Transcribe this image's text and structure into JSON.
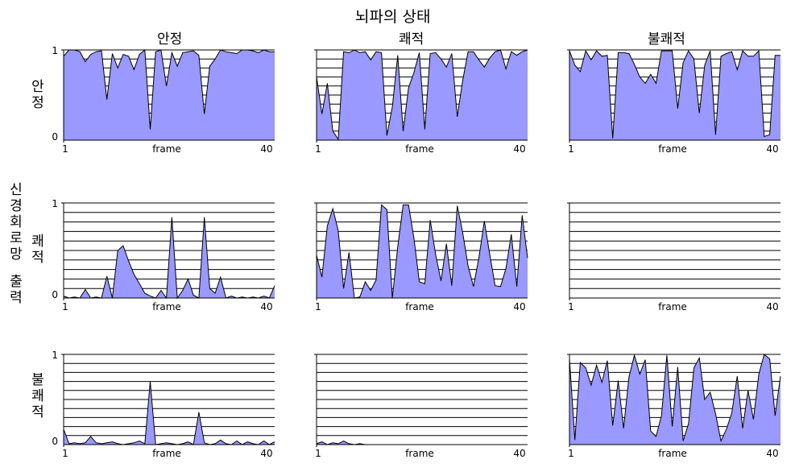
{
  "title": "뇌파의 상태",
  "column_titles": [
    "안정",
    "쾌적",
    "불쾌적"
  ],
  "row_titles": [
    "안정",
    "쾌적",
    "불쾌적"
  ],
  "left_group_label": "신경회로망 출력",
  "colors": {
    "fill": "#9999ff",
    "stroke": "#000000",
    "grid": "#000000"
  },
  "axis": {
    "xlabel": "frame",
    "x_first": "1",
    "x_last": "40",
    "y_top": "1",
    "y_bottom": "0"
  },
  "chart_data": [
    {
      "type": "area",
      "row": "안정",
      "col": "안정",
      "xlabel": "frame",
      "xlim": [
        1,
        40
      ],
      "ylim": [
        0,
        1
      ],
      "grid": "horizontal",
      "y": [
        0.93,
        1.0,
        1.0,
        0.98,
        0.87,
        0.95,
        0.98,
        0.99,
        0.45,
        0.96,
        0.8,
        0.95,
        0.93,
        0.78,
        0.95,
        1.0,
        0.12,
        0.98,
        1.0,
        0.6,
        0.97,
        0.82,
        0.97,
        0.98,
        0.99,
        0.94,
        0.29,
        0.82,
        0.9,
        1.0,
        0.98,
        0.97,
        0.96,
        1.0,
        1.0,
        0.99,
        0.97,
        1.0,
        0.98,
        0.98
      ]
    },
    {
      "type": "area",
      "row": "안정",
      "col": "쾌적",
      "xlabel": "frame",
      "xlim": [
        1,
        40
      ],
      "ylim": [
        0,
        1
      ],
      "grid": "horizontal",
      "y": [
        0.7,
        0.29,
        0.63,
        0.1,
        0.01,
        0.98,
        0.97,
        1.0,
        0.97,
        0.98,
        0.89,
        0.98,
        0.97,
        0.05,
        0.37,
        0.94,
        0.1,
        0.58,
        0.75,
        0.97,
        0.12,
        0.96,
        0.97,
        0.9,
        0.81,
        0.96,
        0.26,
        0.66,
        0.98,
        0.98,
        0.89,
        0.81,
        0.91,
        0.98,
        1.0,
        0.79,
        0.98,
        0.94,
        0.98,
        1.0
      ]
    },
    {
      "type": "area",
      "row": "안정",
      "col": "불쾌적",
      "xlabel": "frame",
      "xlim": [
        1,
        40
      ],
      "ylim": [
        0,
        1
      ],
      "grid": "horizontal",
      "y": [
        0.99,
        0.83,
        0.76,
        0.99,
        0.89,
        0.99,
        0.93,
        0.94,
        0.02,
        0.97,
        0.97,
        0.96,
        0.84,
        0.7,
        0.63,
        0.73,
        0.63,
        0.99,
        0.99,
        0.99,
        0.35,
        0.86,
        0.99,
        0.9,
        0.3,
        0.83,
        0.99,
        0.06,
        0.93,
        0.96,
        0.98,
        0.78,
        0.99,
        0.93,
        0.93,
        0.99,
        0.04,
        0.06,
        0.94,
        0.94
      ]
    },
    {
      "type": "area",
      "row": "쾌적",
      "col": "안정",
      "xlabel": "frame",
      "xlim": [
        1,
        40
      ],
      "ylim": [
        0,
        1
      ],
      "grid": "horizontal",
      "y": [
        0.02,
        0.0,
        0.01,
        0.0,
        0.09,
        0.0,
        0.01,
        0.0,
        0.23,
        0.0,
        0.5,
        0.55,
        0.39,
        0.25,
        0.15,
        0.05,
        0.02,
        0.0,
        0.08,
        0.0,
        0.85,
        0.0,
        0.08,
        0.2,
        0.03,
        0.0,
        0.85,
        0.1,
        0.05,
        0.22,
        0.0,
        0.02,
        0.0,
        0.01,
        0.0,
        0.01,
        0.0,
        0.02,
        0.0,
        0.13
      ]
    },
    {
      "type": "area",
      "row": "쾌적",
      "col": "쾌적",
      "xlabel": "frame",
      "xlim": [
        1,
        40
      ],
      "ylim": [
        0,
        1
      ],
      "grid": "horizontal",
      "y": [
        0.45,
        0.22,
        0.76,
        0.94,
        0.71,
        0.1,
        0.48,
        0.0,
        0.01,
        0.17,
        0.08,
        0.19,
        0.98,
        0.93,
        0.0,
        0.54,
        0.98,
        0.98,
        0.63,
        0.17,
        0.15,
        0.82,
        0.46,
        0.18,
        0.57,
        0.13,
        0.97,
        0.69,
        0.34,
        0.12,
        0.42,
        0.81,
        0.46,
        0.13,
        0.12,
        0.31,
        0.67,
        0.12,
        0.87,
        0.42
      ]
    },
    {
      "type": "area",
      "row": "쾌적",
      "col": "불쾌적",
      "xlabel": "frame",
      "xlim": [
        1,
        40
      ],
      "ylim": [
        0,
        1
      ],
      "grid": "horizontal",
      "y": [
        0,
        0,
        0,
        0,
        0,
        0,
        0,
        0,
        0,
        0,
        0,
        0,
        0,
        0,
        0,
        0,
        0,
        0,
        0,
        0,
        0,
        0,
        0,
        0,
        0,
        0,
        0,
        0,
        0,
        0,
        0,
        0,
        0,
        0,
        0,
        0,
        0,
        0,
        0,
        0
      ]
    },
    {
      "type": "area",
      "row": "불쾌적",
      "col": "안정",
      "xlabel": "frame",
      "xlim": [
        1,
        40
      ],
      "ylim": [
        0,
        1
      ],
      "grid": "horizontal",
      "y": [
        0.17,
        0.01,
        0.02,
        0.01,
        0.02,
        0.09,
        0.02,
        0.01,
        0.02,
        0.03,
        0.01,
        0.0,
        0.01,
        0.02,
        0.04,
        0.01,
        0.7,
        0.0,
        0.01,
        0.02,
        0.01,
        0.0,
        0.01,
        0.03,
        0.0,
        0.36,
        0.02,
        0.0,
        0.01,
        0.05,
        0.01,
        0.0,
        0.04,
        0.0,
        0.03,
        0.01,
        0.0,
        0.04,
        0.0,
        0.03
      ]
    },
    {
      "type": "area",
      "row": "불쾌적",
      "col": "쾌적",
      "xlabel": "frame",
      "xlim": [
        1,
        40
      ],
      "ylim": [
        0,
        1
      ],
      "grid": "horizontal",
      "y": [
        0.01,
        0.03,
        0.0,
        0.02,
        0.01,
        0.04,
        0.01,
        0.0,
        0.01,
        0,
        0,
        0,
        0,
        0,
        0,
        0,
        0,
        0,
        0,
        0,
        0,
        0,
        0,
        0,
        0,
        0,
        0,
        0,
        0,
        0,
        0,
        0,
        0,
        0,
        0,
        0,
        0,
        0,
        0,
        0
      ]
    },
    {
      "type": "area",
      "row": "불쾌적",
      "col": "불쾌적",
      "xlabel": "frame",
      "xlim": [
        1,
        40
      ],
      "ylim": [
        0,
        1
      ],
      "grid": "horizontal",
      "y": [
        0.95,
        0.05,
        0.91,
        0.85,
        0.66,
        0.88,
        0.69,
        0.93,
        0.21,
        0.71,
        0.18,
        0.75,
        0.99,
        0.78,
        0.94,
        0.15,
        0.09,
        0.32,
        0.99,
        0.2,
        0.86,
        0.04,
        0.23,
        0.85,
        0.96,
        0.5,
        0.58,
        0.34,
        0.04,
        0.17,
        0.35,
        0.76,
        0.18,
        0.6,
        0.28,
        0.78,
        1.0,
        0.95,
        0.32,
        0.76
      ]
    }
  ]
}
